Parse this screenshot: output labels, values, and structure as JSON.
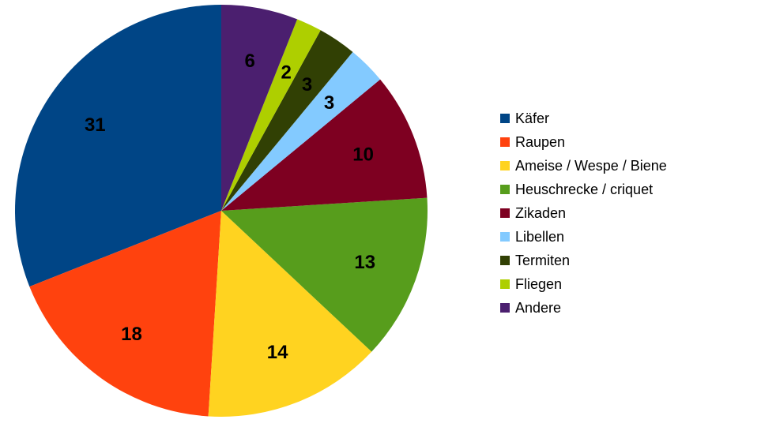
{
  "chart_data": {
    "type": "pie",
    "title": "",
    "categories": [
      "Käfer",
      "Raupen",
      "Ameise / Wespe / Biene",
      "Heuschrecke / criquet",
      "Zikaden",
      "Libellen",
      "Termiten",
      "Fliegen",
      "Andere"
    ],
    "values": [
      31,
      18,
      14,
      13,
      10,
      3,
      3,
      2,
      6
    ],
    "colors": [
      "#004586",
      "#ff420e",
      "#ffd320",
      "#579d1c",
      "#7e0021",
      "#83caff",
      "#314004",
      "#aecf00",
      "#4b1f6f"
    ],
    "data_labels": [
      "31",
      "18",
      "14",
      "13",
      "10",
      "3",
      "3",
      "2",
      "6"
    ],
    "start_angle_deg": 0,
    "direction": "counterclockwise",
    "legend_position": "right"
  }
}
